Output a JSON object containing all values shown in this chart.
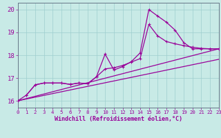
{
  "xlabel": "Windchill (Refroidissement éolien,°C)",
  "bg_color": "#c8eae6",
  "grid_color": "#9ecece",
  "line_color": "#990099",
  "xlim": [
    0,
    23
  ],
  "ylim": [
    15.7,
    20.3
  ],
  "yticks": [
    16,
    17,
    18,
    19,
    20
  ],
  "xticks": [
    0,
    1,
    2,
    3,
    4,
    5,
    6,
    7,
    8,
    9,
    10,
    11,
    12,
    13,
    14,
    15,
    16,
    17,
    18,
    19,
    20,
    21,
    22,
    23
  ],
  "line1_x": [
    0,
    1,
    2,
    3,
    4,
    5,
    6,
    7,
    8,
    9,
    10,
    11,
    12,
    13,
    14,
    15,
    16,
    17,
    18,
    19,
    20,
    21,
    22,
    23
  ],
  "line1_y": [
    16.0,
    16.25,
    16.7,
    16.78,
    16.78,
    16.78,
    16.72,
    16.78,
    16.75,
    17.05,
    17.4,
    17.45,
    17.55,
    17.7,
    17.85,
    19.35,
    18.85,
    18.6,
    18.5,
    18.42,
    18.35,
    18.3,
    18.28,
    18.28
  ],
  "line2_x": [
    1,
    2,
    3,
    4,
    5,
    6,
    7,
    8,
    9,
    10,
    11,
    12,
    13,
    14,
    15,
    16,
    17,
    18,
    19,
    20,
    21,
    22,
    23
  ],
  "line2_y": [
    16.25,
    16.7,
    16.78,
    16.78,
    16.78,
    16.72,
    16.78,
    16.75,
    17.05,
    18.05,
    17.35,
    17.5,
    17.72,
    18.1,
    20.0,
    19.72,
    19.45,
    19.1,
    18.55,
    18.28,
    18.28,
    18.28,
    18.28
  ],
  "line3_x": [
    0,
    23
  ],
  "line3_y": [
    16.0,
    18.28
  ],
  "line4_x": [
    0,
    23
  ],
  "line4_y": [
    16.0,
    17.82
  ]
}
